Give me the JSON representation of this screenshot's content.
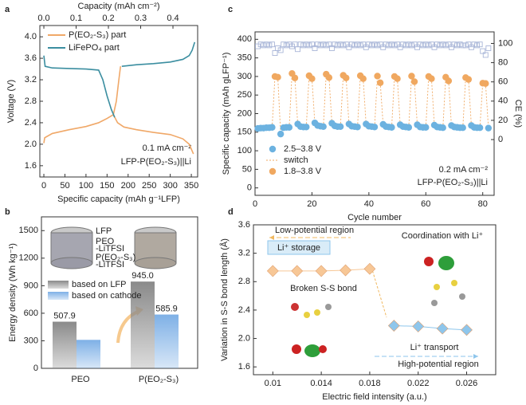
{
  "chart_data": [
    {
      "label": "a",
      "type": "line",
      "xlabel": "Specific capacity (mAh g⁻¹LFP)",
      "ylabel": "Voltage (V)",
      "x2label": "Capacity (mAh cm⁻²)",
      "xlim": [
        -9.5,
        365
      ],
      "xticks": [
        0,
        50,
        100,
        150,
        200,
        250,
        300,
        350
      ],
      "x2lim": [
        -0.0124,
        0.4765
      ],
      "x2ticks": [
        {
          "value": 0,
          "label": "0.0"
        },
        0.1,
        0.2,
        0.3,
        0.4
      ],
      "ylim": [
        1.39,
        4.21
      ],
      "yticks": [
        1.6,
        {
          "value": 2,
          "label": "2.0"
        },
        2.4,
        2.8,
        3.2,
        3.6,
        {
          "value": 4,
          "label": "4.0"
        }
      ],
      "legend": "upper left",
      "annotations": [
        "0.1 mA cm⁻²",
        "LFP-P(EO₂-S₃)||Li"
      ],
      "series": [
        {
          "name": "P(EO₂-S₃) part",
          "color": "#f0a868",
          "x": [
            0,
            2,
            20,
            60,
            100,
            130,
            150,
            165,
            172,
            178,
            182,
            0,
            165,
            175,
            190,
            220,
            260,
            300,
            330,
            345,
            355
          ],
          "values": [
            2.02,
            2.12,
            2.2,
            2.27,
            2.33,
            2.4,
            2.48,
            2.55,
            2.8,
            3.2,
            3.45,
            null,
            2.55,
            2.4,
            2.32,
            2.27,
            2.22,
            2.18,
            2.1,
            2.0,
            1.82
          ]
        },
        {
          "name": "LiFePO₄ part",
          "color": "#3b8ea0",
          "x": [
            0,
            3,
            20,
            60,
            100,
            130,
            140,
            150,
            160,
            168,
            0,
            185,
            220,
            260,
            300,
            330,
            345,
            352,
            358
          ],
          "values": [
            3.65,
            3.45,
            3.42,
            3.41,
            3.4,
            3.38,
            3.2,
            2.9,
            2.65,
            2.5,
            null,
            3.45,
            3.48,
            3.5,
            3.53,
            3.58,
            3.65,
            3.75,
            3.9
          ]
        }
      ]
    },
    {
      "label": "b",
      "type": "bar",
      "ylabel": "Energy density (Wh kg⁻¹)",
      "categories": [
        "PEO",
        "P(EO₂-S₃)"
      ],
      "ylim": [
        0,
        1650
      ],
      "yticks": [
        0,
        300,
        600,
        900,
        1200,
        1500
      ],
      "legend": "center left",
      "annotations": [
        "LFP",
        "PEO",
        "-LiTFSI",
        "P(EO₂-S₃)",
        "-LiTFSI"
      ],
      "series": [
        {
          "name": "based on LFP",
          "color": "#8a8a8a",
          "values": [
            507.9,
            945.0
          ],
          "value_labels": [
            "507.9",
            "945.0"
          ]
        },
        {
          "name": "based on cathode",
          "color": "#7eb0e6",
          "values": [
            310,
            585.9
          ],
          "value_labels": [
            null,
            "585.9"
          ]
        }
      ]
    },
    {
      "label": "c",
      "type": "scatter",
      "xlabel": "Cycle number",
      "ylabel": "Specific capacity (mAh gLFP⁻¹)",
      "y2label": "CE (%)",
      "xlim": [
        0,
        84
      ],
      "xticks": [
        0,
        20,
        40,
        60,
        80
      ],
      "ylim": [
        -20,
        420
      ],
      "yticks": [
        0,
        50,
        100,
        150,
        200,
        250,
        300,
        350,
        400
      ],
      "y2lim": [
        -58,
        112
      ],
      "y2ticks": [
        0,
        20,
        40,
        60,
        80,
        100
      ],
      "legend": "lower left",
      "annotations": [
        "0.2 mA cm⁻²",
        "LFP-P(EO₂-S₃)||Li"
      ],
      "series": [
        {
          "name": "2.5–3.8 V",
          "color": "#6cb2e0",
          "marker": "circle",
          "x": [
            1,
            2,
            3,
            4,
            5,
            6,
            9,
            10,
            11,
            12,
            15,
            16,
            17,
            18,
            21,
            22,
            23,
            24,
            27,
            28,
            29,
            30,
            33,
            34,
            35,
            36,
            39,
            40,
            41,
            42,
            45,
            46,
            47,
            48,
            51,
            52,
            53,
            54,
            57,
            58,
            59,
            60,
            63,
            64,
            65,
            66,
            69,
            70,
            71,
            72,
            73,
            76,
            77,
            78,
            79,
            82
          ],
          "values": [
            160,
            161,
            161,
            162,
            162,
            163,
            145,
            162,
            163,
            163,
            172,
            165,
            164,
            164,
            175,
            168,
            166,
            165,
            174,
            167,
            165,
            165,
            172,
            166,
            165,
            164,
            172,
            166,
            165,
            164,
            171,
            165,
            164,
            163,
            170,
            165,
            164,
            163,
            170,
            164,
            163,
            163,
            169,
            164,
            163,
            162,
            168,
            164,
            163,
            162,
            162,
            168,
            163,
            162,
            162,
            161
          ]
        },
        {
          "name": "switch",
          "color": "#f0a860",
          "style": "dotted"
        },
        {
          "name": "1.8–3.8 V",
          "color": "#f0a860",
          "marker": "circle",
          "x": [
            7,
            8,
            13,
            14,
            19,
            20,
            25,
            26,
            31,
            32,
            37,
            38,
            43,
            44,
            49,
            50,
            55,
            56,
            61,
            62,
            67,
            68,
            74,
            75,
            80,
            81
          ],
          "values": [
            300,
            298,
            308,
            296,
            302,
            294,
            306,
            297,
            303,
            296,
            302,
            294,
            301,
            283,
            300,
            294,
            301,
            286,
            300,
            294,
            298,
            288,
            297,
            292,
            282,
            281
          ]
        },
        {
          "color": "#a9b6d8",
          "marker": "square",
          "axis": "y2",
          "x": [
            1,
            2,
            3,
            4,
            5,
            6,
            7,
            8,
            9,
            10,
            11,
            12,
            13,
            14,
            15,
            16,
            17,
            18,
            19,
            20,
            21,
            22,
            23,
            24,
            25,
            26,
            27,
            28,
            29,
            30,
            31,
            32,
            33,
            34,
            35,
            36,
            37,
            38,
            39,
            40,
            41,
            42,
            43,
            44,
            45,
            46,
            47,
            48,
            49,
            50,
            51,
            52,
            53,
            54,
            55,
            56,
            57,
            58,
            59,
            60,
            61,
            62,
            63,
            64,
            65,
            66,
            67,
            68,
            69,
            70,
            71,
            72,
            73,
            74,
            75,
            76,
            77,
            78,
            79,
            80,
            81,
            82
          ],
          "values": [
            97,
            99,
            98,
            99,
            98,
            99,
            90,
            95,
            93,
            99,
            98,
            99,
            97,
            99,
            94,
            99,
            98,
            99,
            98,
            99,
            95,
            99,
            98,
            99,
            98,
            99,
            95,
            99,
            98,
            99,
            98,
            99,
            96,
            99,
            98,
            99,
            98,
            99,
            96,
            99,
            98,
            99,
            98,
            99,
            96,
            99,
            98,
            99,
            98,
            99,
            96,
            99,
            98,
            99,
            98,
            99,
            96,
            99,
            98,
            99,
            98,
            99,
            96,
            99,
            98,
            99,
            98,
            99,
            96,
            99,
            98,
            99,
            98,
            98,
            99,
            96,
            99,
            98,
            99,
            92,
            88,
            95
          ]
        }
      ]
    },
    {
      "label": "d",
      "type": "line",
      "xlabel": "Electric field intensity (a.u.)",
      "ylabel": "Variation in S-S bond length (Å)",
      "xlim": [
        0.0084,
        0.0284
      ],
      "xticks": [
        0.01,
        0.014,
        0.018,
        0.022,
        0.026
      ],
      "ylim": [
        1.49,
        3.6
      ],
      "yticks": [
        1.6,
        {
          "value": 2,
          "label": "2.0"
        },
        2.4,
        2.8,
        3.2,
        3.6
      ],
      "annotations": [
        "Low-potential region",
        "Li⁺ storage",
        "Broken S-S bond",
        "Coordination with Li⁺",
        "Li⁺ transport",
        "High-potential region"
      ],
      "series": [
        {
          "color": "#f7c796",
          "marker": "diamond",
          "x": [
            0.01,
            0.012,
            0.014,
            0.016,
            0.018
          ],
          "values": [
            2.95,
            2.95,
            2.95,
            2.96,
            2.98
          ]
        },
        {
          "color": "#8ec6ec",
          "marker": "diamond",
          "x": [
            0.02,
            0.022,
            0.024,
            0.026
          ],
          "values": [
            2.18,
            2.17,
            2.14,
            2.12
          ]
        }
      ]
    }
  ]
}
